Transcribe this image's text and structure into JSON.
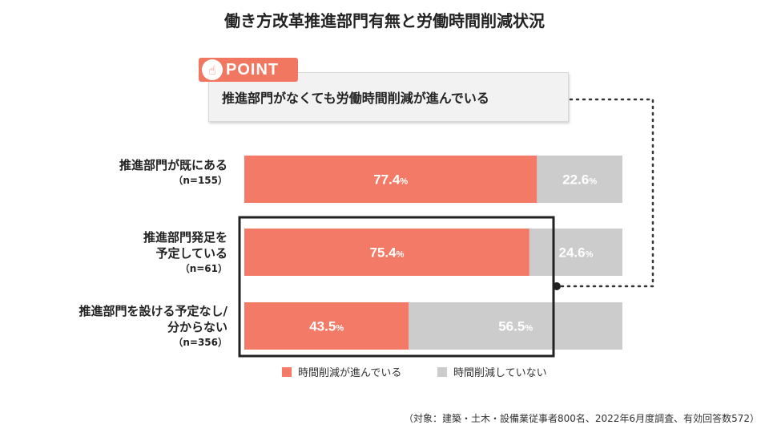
{
  "title": "働き方改革推進部門有無と労働時間削減状況",
  "point": {
    "badge": "POINT",
    "icon": "pointing-hand-icon",
    "message": "推進部門がなくても労働時間削減が進んでいる"
  },
  "rows": [
    {
      "label_lines": [
        "推進部門が既にある"
      ],
      "n": "（n=155）"
    },
    {
      "label_lines": [
        "推進部門発足を",
        "予定している"
      ],
      "n": "（n=61）"
    },
    {
      "label_lines": [
        "推進部門を設ける予定なし/",
        "分からない"
      ],
      "n": "（n=356）"
    }
  ],
  "legend": [
    {
      "label": "時間削減が進んでいる",
      "color": "#f27a66"
    },
    {
      "label": "時間削減していない",
      "color": "#cccccc"
    }
  ],
  "footnote": "（対象：建築・土木・設備業従事者800名、2022年6月度調査、有効回答数572）",
  "chart_data": {
    "type": "bar",
    "orientation": "horizontal",
    "stacked": true,
    "categories": [
      "推進部門が既にある",
      "推進部門発足を予定している",
      "推進部門を設ける予定なし/分からない"
    ],
    "series": [
      {
        "name": "時間削減が進んでいる",
        "values": [
          77.4,
          75.4,
          43.5
        ],
        "color": "#f27a66"
      },
      {
        "name": "時間削減していない",
        "values": [
          22.6,
          24.6,
          56.5
        ],
        "color": "#cccccc"
      }
    ],
    "unit": "%",
    "xlim": [
      0,
      100
    ],
    "legend_position": "bottom"
  }
}
